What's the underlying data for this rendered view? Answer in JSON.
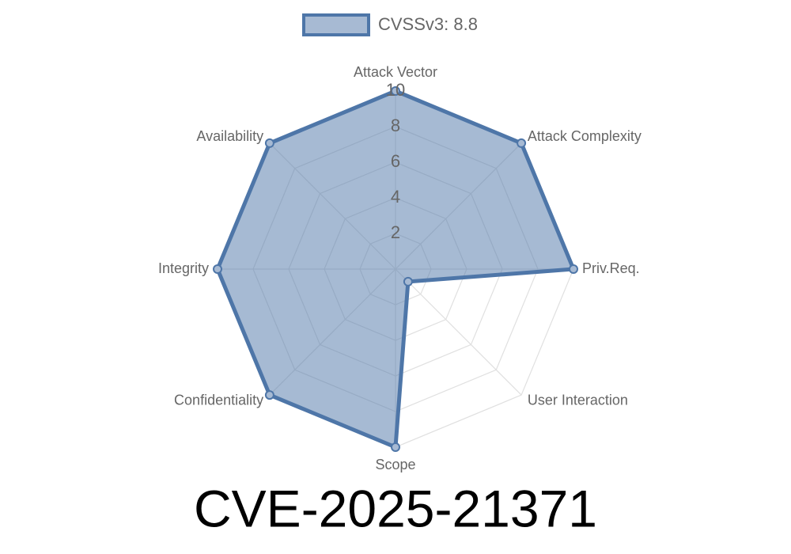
{
  "chart_data": {
    "type": "radar",
    "title": "CVE-2025-21371",
    "categories": [
      "Attack Vector",
      "Attack Complexity",
      "Priv.Req.",
      "User Interaction",
      "Scope",
      "Confidentiality",
      "Integrity",
      "Availability"
    ],
    "series": [
      {
        "name": "CVSSv3: 8.8",
        "color": "#4e76a8",
        "values": [
          10,
          10,
          10,
          1,
          10,
          10,
          10,
          10
        ]
      }
    ],
    "ylim": [
      0,
      10
    ],
    "yticks": [
      2,
      4,
      6,
      8,
      10
    ],
    "grid": true,
    "legend": "top"
  }
}
